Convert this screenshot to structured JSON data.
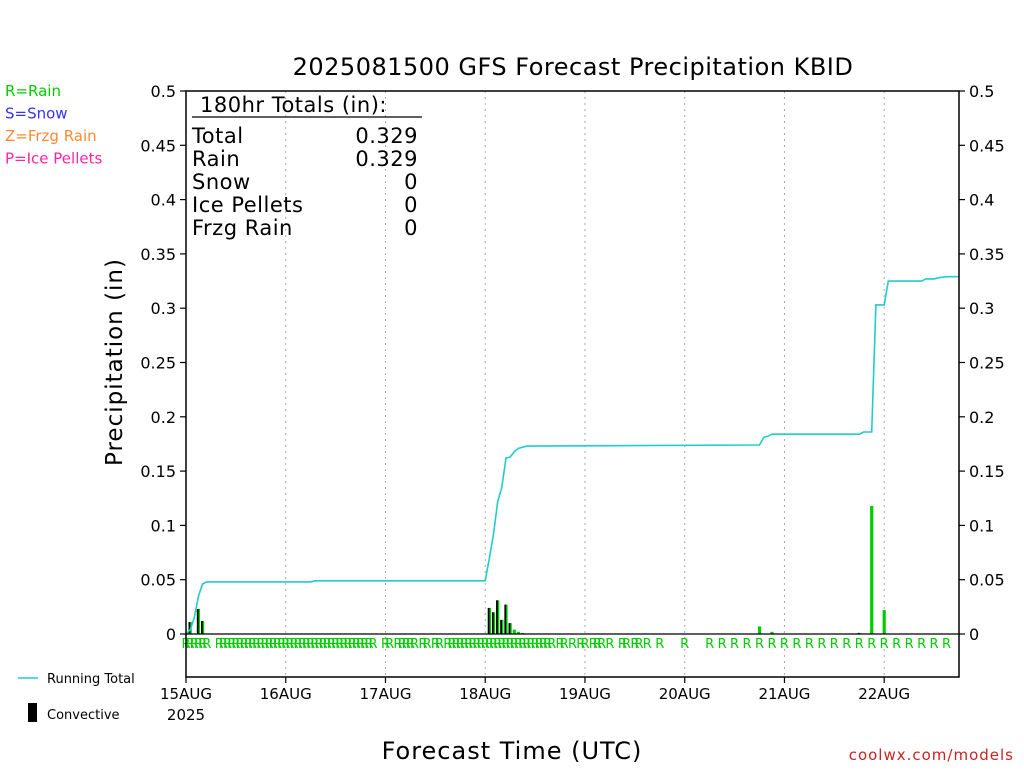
{
  "chart_data": {
    "type": "bar",
    "title": "2025081500 GFS Forecast Precipitation KBID",
    "ylabel": "Precipitation (in)",
    "xlabel": "Forecast Time (UTC)",
    "ylim": [
      0,
      0.5
    ],
    "xlim_hours": [
      0,
      186
    ],
    "yticks": [
      0,
      0.05,
      0.1,
      0.15,
      0.2,
      0.25,
      0.3,
      0.35,
      0.4,
      0.45,
      0.5
    ],
    "x_day_ticks": [
      {
        "hour": 0,
        "label": "15AUG"
      },
      {
        "hour": 24,
        "label": "16AUG"
      },
      {
        "hour": 48,
        "label": "17AUG"
      },
      {
        "hour": 72,
        "label": "18AUG"
      },
      {
        "hour": 96,
        "label": "19AUG"
      },
      {
        "hour": 120,
        "label": "20AUG"
      },
      {
        "hour": 144,
        "label": "21AUG"
      },
      {
        "hour": 168,
        "label": "22AUG"
      }
    ],
    "year_label": "2025",
    "grid": true,
    "precip_type_legend": [
      {
        "label": "R=Rain",
        "color": "#00cc00"
      },
      {
        "label": "S=Snow",
        "color": "#3333ff"
      },
      {
        "label": "Z=Frzg Rain",
        "color": "#ff8833"
      },
      {
        "label": "P=Ice Pellets",
        "color": "#ff22aa"
      }
    ],
    "series_legend": {
      "running_total": "Running Total",
      "convective": "Convective"
    },
    "colors": {
      "rain": "#00cc00",
      "running_total": "#22cccc",
      "convective": "#000000",
      "grid": "#aaaaaa"
    },
    "totals_box": {
      "header": "180hr Totals (in):",
      "rows": [
        {
          "label": "Total",
          "value": "0.329"
        },
        {
          "label": "Rain",
          "value": "0.329"
        },
        {
          "label": "Snow",
          "value": "0"
        },
        {
          "label": "Ice Pellets",
          "value": "0"
        },
        {
          "label": "Frzg Rain",
          "value": "0"
        }
      ]
    },
    "precip_bars": [
      {
        "hour": 1,
        "value": 0.011,
        "convective": 0.011
      },
      {
        "hour": 3,
        "value": 0.023,
        "convective": 0.023
      },
      {
        "hour": 4,
        "value": 0.012,
        "convective": 0.012
      },
      {
        "hour": 73,
        "value": 0.024,
        "convective": 0.024
      },
      {
        "hour": 74,
        "value": 0.02,
        "convective": 0.02
      },
      {
        "hour": 75,
        "value": 0.031,
        "convective": 0.031
      },
      {
        "hour": 76,
        "value": 0.013,
        "convective": 0.013
      },
      {
        "hour": 77,
        "value": 0.027,
        "convective": 0.027
      },
      {
        "hour": 78,
        "value": 0.01,
        "convective": 0.01
      },
      {
        "hour": 79,
        "value": 0.004,
        "convective": 0.0
      },
      {
        "hour": 80,
        "value": 0.002,
        "convective": 0.0
      },
      {
        "hour": 81,
        "value": 0.001,
        "convective": 0.0
      },
      {
        "hour": 138,
        "value": 0.007,
        "convective": 0.0
      },
      {
        "hour": 141,
        "value": 0.002,
        "convective": 0.0
      },
      {
        "hour": 162,
        "value": 0.001,
        "convective": 0.001
      },
      {
        "hour": 165,
        "value": 0.118,
        "convective": 0.0
      },
      {
        "hour": 168,
        "value": 0.022,
        "convective": 0.0
      }
    ],
    "running_total": [
      {
        "hour": 0,
        "value": 0.0
      },
      {
        "hour": 1,
        "value": 0.004
      },
      {
        "hour": 2,
        "value": 0.015
      },
      {
        "hour": 3,
        "value": 0.035
      },
      {
        "hour": 4,
        "value": 0.046
      },
      {
        "hour": 5,
        "value": 0.048
      },
      {
        "hour": 30,
        "value": 0.048
      },
      {
        "hour": 31,
        "value": 0.049
      },
      {
        "hour": 72,
        "value": 0.049
      },
      {
        "hour": 73,
        "value": 0.07
      },
      {
        "hour": 74,
        "value": 0.092
      },
      {
        "hour": 75,
        "value": 0.122
      },
      {
        "hour": 76,
        "value": 0.135
      },
      {
        "hour": 77,
        "value": 0.162
      },
      {
        "hour": 78,
        "value": 0.163
      },
      {
        "hour": 79,
        "value": 0.168
      },
      {
        "hour": 80,
        "value": 0.171
      },
      {
        "hour": 81,
        "value": 0.172
      },
      {
        "hour": 82,
        "value": 0.173
      },
      {
        "hour": 138,
        "value": 0.174
      },
      {
        "hour": 139,
        "value": 0.181
      },
      {
        "hour": 140,
        "value": 0.182
      },
      {
        "hour": 141,
        "value": 0.184
      },
      {
        "hour": 162,
        "value": 0.184
      },
      {
        "hour": 163,
        "value": 0.186
      },
      {
        "hour": 165,
        "value": 0.186
      },
      {
        "hour": 166,
        "value": 0.303
      },
      {
        "hour": 168,
        "value": 0.303
      },
      {
        "hour": 169,
        "value": 0.325
      },
      {
        "hour": 177,
        "value": 0.325
      },
      {
        "hour": 178,
        "value": 0.327
      },
      {
        "hour": 180,
        "value": 0.327
      },
      {
        "hour": 181,
        "value": 0.328
      },
      {
        "hour": 183,
        "value": 0.329
      },
      {
        "hour": 186,
        "value": 0.329
      }
    ],
    "precip_type_marks": {
      "symbol": "R",
      "hours": [
        0,
        1,
        2,
        3,
        4,
        5,
        8,
        9,
        10,
        11,
        12,
        13,
        14,
        15,
        16,
        17,
        18,
        19,
        20,
        21,
        22,
        23,
        24,
        25,
        26,
        27,
        28,
        29,
        30,
        31,
        32,
        33,
        34,
        35,
        36,
        37,
        38,
        39,
        40,
        41,
        42,
        43,
        44,
        45,
        48,
        49,
        51,
        52,
        53,
        54,
        55,
        57,
        58,
        60,
        61,
        63,
        64,
        65,
        66,
        67,
        68,
        69,
        70,
        71,
        72,
        73,
        74,
        75,
        76,
        77,
        78,
        79,
        80,
        81,
        82,
        83,
        84,
        85,
        86,
        87,
        88,
        90,
        91,
        93,
        95,
        96,
        98,
        99,
        100,
        102,
        105,
        106,
        108,
        109,
        111,
        114,
        120,
        126,
        129,
        132,
        135,
        138,
        141,
        144,
        147,
        150,
        153,
        156,
        159,
        162,
        165,
        168,
        171,
        174,
        177,
        180,
        183
      ]
    }
  },
  "credit": "coolwx.com/models"
}
